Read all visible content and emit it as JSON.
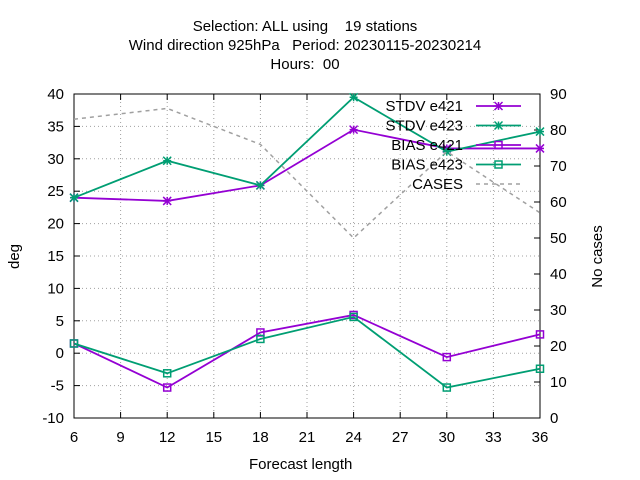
{
  "title_lines": [
    "Selection: ALL using    19 stations",
    "Wind direction 925hPa   Period: 20230115-20230214",
    "Hours:  00"
  ],
  "chart_data": {
    "type": "line",
    "xlabel": "Forecast length",
    "ylabel": "deg",
    "y2label": "No cases",
    "xlim": [
      6,
      36
    ],
    "ylim": [
      -10,
      40
    ],
    "y2lim": [
      0,
      90
    ],
    "xticks": [
      6,
      9,
      12,
      15,
      18,
      21,
      24,
      27,
      30,
      33,
      36
    ],
    "yticks": [
      -10,
      -5,
      0,
      5,
      10,
      15,
      20,
      25,
      30,
      35,
      40
    ],
    "y2ticks": [
      0,
      10,
      20,
      30,
      40,
      50,
      60,
      70,
      80,
      90
    ],
    "grid": true,
    "legend_position": "top-right",
    "x": [
      6,
      12,
      18,
      24,
      30,
      36
    ],
    "series": [
      {
        "name": "STDV e421",
        "axis": "y",
        "marker": "star",
        "color": "#9400d3",
        "dash": false,
        "values": [
          24.0,
          23.5,
          25.9,
          34.5,
          31.6,
          31.6
        ]
      },
      {
        "name": "STDV e423",
        "axis": "y",
        "marker": "star",
        "color": "#009e73",
        "dash": false,
        "values": [
          24.0,
          29.7,
          25.9,
          39.5,
          31.1,
          34.2
        ]
      },
      {
        "name": "BIAS e421",
        "axis": "y",
        "marker": "square",
        "color": "#9400d3",
        "dash": false,
        "values": [
          1.5,
          -5.3,
          3.2,
          5.9,
          -0.6,
          2.9
        ]
      },
      {
        "name": "BIAS e423",
        "axis": "y",
        "marker": "square",
        "color": "#009e73",
        "dash": false,
        "values": [
          1.5,
          -3.1,
          2.2,
          5.6,
          -5.3,
          -2.4
        ]
      },
      {
        "name": "CASES",
        "axis": "y2",
        "marker": "none",
        "color": "#a0a0a0",
        "dash": true,
        "values": [
          83,
          86,
          76,
          50,
          74,
          57
        ]
      }
    ]
  }
}
